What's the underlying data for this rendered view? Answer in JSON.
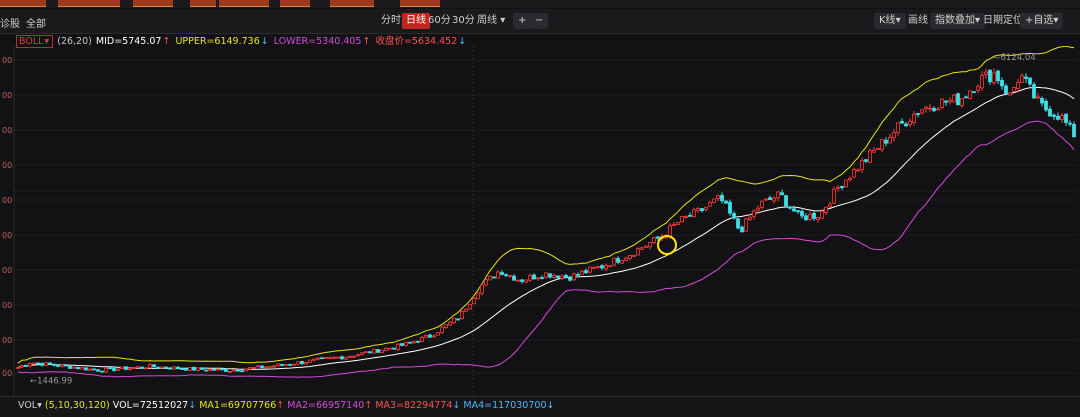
{
  "toolbar": {
    "left_labels": [
      "诊股",
      "全部"
    ],
    "period_tabs": [
      "分时",
      "日线",
      "60分",
      "30分",
      "周线"
    ],
    "active_tab": 1,
    "zoom_in": "+",
    "zoom_out": "−",
    "right_labels": [
      "K线",
      "画线",
      "指数叠加",
      "日期定位",
      "+自选"
    ]
  },
  "legend": {
    "indicator": "BOLL",
    "params": "(26,20)",
    "mid": "MID=5745.07",
    "upper": "UPPER=6149.736",
    "lower": "LOWER=5340.405",
    "close": "收盘价=5634.452",
    "colors": {
      "mid": "#ffffff",
      "upper": "#e6e619",
      "lower": "#d64bd6",
      "close": "#ff5050"
    }
  },
  "volume_legend": {
    "label": "VOL",
    "params": "(5,10,30,120)",
    "vol": "VOL=72512027",
    "ma1": "MA1=69707766",
    "ma2": "MA2=66957140",
    "ma3": "MA3=82294774",
    "ma4": "MA4=117030700",
    "colors": {
      "ma1": "#e6e619",
      "ma2": "#d64bd6",
      "ma3": "#ff5050",
      "ma4": "#4db8ff"
    }
  },
  "chart_data": {
    "type": "candlestick",
    "indicator": "BOLL",
    "y_tick_labels": [
      "00",
      "00",
      "00",
      "00",
      "00",
      "00",
      "00",
      "00",
      "00",
      "00",
      "00"
    ],
    "annotations": {
      "low": "1446.99",
      "high": "6124.04"
    },
    "series": [
      {
        "name": "MID",
        "color": "#ffffff"
      },
      {
        "name": "UPPER",
        "color": "#e6e619"
      },
      {
        "name": "LOWER",
        "color": "#d64bd6"
      }
    ],
    "close_path": [
      [
        0,
        1510
      ],
      [
        30,
        1700
      ],
      [
        60,
        1650
      ],
      [
        100,
        1580
      ],
      [
        150,
        1640
      ],
      [
        190,
        1600
      ],
      [
        230,
        1580
      ],
      [
        270,
        1640
      ],
      [
        310,
        1720
      ],
      [
        350,
        1800
      ],
      [
        400,
        1950
      ],
      [
        430,
        2100
      ],
      [
        460,
        2400
      ],
      [
        480,
        2850
      ],
      [
        500,
        3100
      ],
      [
        520,
        2950
      ],
      [
        545,
        3050
      ],
      [
        570,
        3000
      ],
      [
        600,
        3150
      ],
      [
        630,
        3350
      ],
      [
        660,
        3600
      ],
      [
        680,
        3850
      ],
      [
        700,
        4000
      ],
      [
        720,
        4200
      ],
      [
        740,
        3700
      ],
      [
        760,
        4100
      ],
      [
        780,
        4250
      ],
      [
        800,
        3900
      ],
      [
        820,
        3950
      ],
      [
        840,
        4400
      ],
      [
        860,
        4700
      ],
      [
        880,
        5000
      ],
      [
        900,
        5300
      ],
      [
        920,
        5550
      ],
      [
        940,
        5650
      ],
      [
        960,
        5700
      ],
      [
        980,
        6000
      ],
      [
        995,
        6100
      ],
      [
        1010,
        5750
      ],
      [
        1020,
        6080
      ],
      [
        1040,
        5600
      ],
      [
        1060,
        5450
      ],
      [
        1075,
        5150
      ]
    ],
    "y_range": [
      1250,
      6450
    ]
  }
}
